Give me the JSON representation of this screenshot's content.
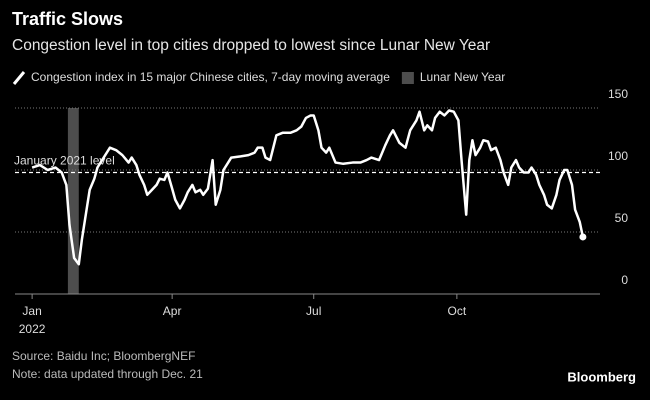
{
  "chart_data": {
    "type": "line",
    "title": "Traffic Slows",
    "subtitle": "Congestion level in top cities dropped to lowest since Lunar New Year",
    "series": [
      {
        "name": "Congestion index in 15 major Chinese cities, 7-day moving average",
        "color": "#ffffff",
        "values": [
          102,
          104,
          100,
          102,
          98,
          88,
          56,
          29,
          24,
          44,
          68,
          84,
          93,
          102,
          108,
          114,
          118,
          116,
          112,
          106,
          110,
          104,
          96,
          88,
          80,
          84,
          88,
          93,
          92,
          98,
          85,
          76,
          69,
          76,
          82,
          88,
          82,
          84,
          80,
          85,
          108,
          72,
          84,
          100,
          106,
          110,
          111,
          112,
          114,
          118,
          118,
          110,
          108,
          128,
          130,
          130,
          132,
          135,
          142,
          144,
          144,
          132,
          118,
          114,
          118,
          106,
          105,
          106,
          106,
          108,
          110,
          108,
          120,
          128,
          132,
          122,
          118,
          132,
          140,
          147,
          132,
          136,
          132,
          142,
          147,
          144,
          148,
          147,
          140,
          108,
          64,
          108,
          124,
          112,
          118,
          124,
          123,
          116,
          118,
          108,
          98,
          88,
          102,
          108,
          102,
          98,
          98,
          102,
          96,
          88,
          80,
          72,
          69,
          80,
          92,
          100,
          100,
          88,
          68,
          58,
          46
        ]
      }
    ],
    "x": [
      1,
      6,
      11,
      16,
      20,
      23,
      25,
      28,
      31,
      33,
      36,
      38,
      41,
      43,
      46,
      49,
      51,
      55,
      59,
      63,
      65,
      68,
      70,
      73,
      75,
      78,
      81,
      83,
      86,
      88,
      91,
      93,
      96,
      99,
      101,
      104,
      106,
      109,
      111,
      114,
      117,
      119,
      122,
      124,
      127,
      129,
      135,
      140,
      144,
      146,
      149,
      151,
      154,
      158,
      162,
      167,
      171,
      174,
      177,
      180,
      182,
      185,
      187,
      190,
      192,
      196,
      201,
      207,
      212,
      216,
      219,
      224,
      228,
      231,
      233,
      237,
      241,
      244,
      248,
      250,
      253,
      255,
      258,
      260,
      263,
      266,
      269,
      272,
      275,
      277,
      280,
      282,
      284,
      286,
      289,
      291,
      294,
      296,
      299,
      302,
      304,
      307,
      309,
      312,
      314,
      317,
      320,
      322,
      325,
      327,
      330,
      332,
      335,
      338,
      340,
      343,
      345,
      348,
      350,
      353,
      355
    ],
    "xlim": [
      -10,
      366
    ],
    "xticks": [
      {
        "value": 1,
        "label": "Jan"
      },
      {
        "value": 91,
        "label": "Apr"
      },
      {
        "value": 182,
        "label": "Jul"
      },
      {
        "value": 274,
        "label": "Oct"
      }
    ],
    "x_year_label": "2022",
    "ylim": [
      0,
      150
    ],
    "yticks": [
      0,
      50,
      100,
      150
    ],
    "grid": true,
    "shaded_band": {
      "name": "Lunar New Year",
      "color": "#4d4d4d",
      "x": [
        24,
        31
      ]
    },
    "reference_line": {
      "label": "January 2021 level",
      "value": 98
    },
    "source": "Source: Baidu Inc; BloombergNEF",
    "note": "Note: data updated through Dec. 21",
    "brand": "Bloomberg"
  }
}
